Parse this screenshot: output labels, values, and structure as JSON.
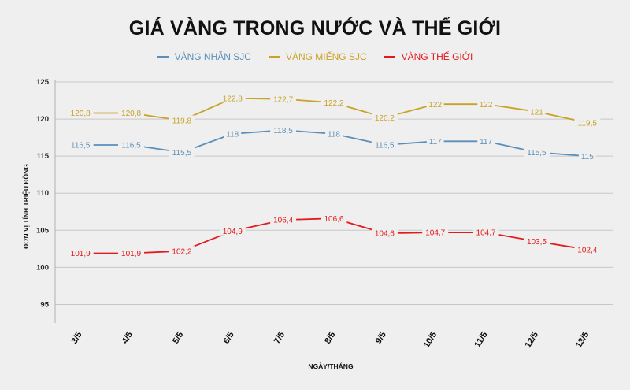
{
  "chart_data": {
    "type": "line",
    "title": "GIÁ VÀNG TRONG NƯỚC VÀ THẾ GIỚI",
    "xlabel": "NGÀY/THÁNG",
    "ylabel": "ĐƠN VỊ TÍNH TRIỆU ĐỒNG",
    "categories": [
      "3/5",
      "4/5",
      "5/5",
      "6/5",
      "7/5",
      "8/5",
      "9/5",
      "10/5",
      "11/5",
      "12/5",
      "13/5"
    ],
    "ylim": [
      92.5,
      125
    ],
    "yticks": [
      95,
      100,
      105,
      110,
      115,
      120,
      125
    ],
    "grid": true,
    "legend_position": "top-center",
    "series": [
      {
        "name": "VÀNG NHẪN SJC",
        "color": "#5b8fba",
        "values": [
          116.5,
          116.5,
          115.5,
          118,
          118.5,
          118,
          116.5,
          117,
          117,
          115.5,
          115
        ],
        "labels": [
          "116,5",
          "116,5",
          "115,5",
          "118",
          "118,5",
          "118",
          "116,5",
          "117",
          "117",
          "115,5",
          "115"
        ]
      },
      {
        "name": "VÀNG MIẾNG SJC",
        "color": "#c9a227",
        "values": [
          120.8,
          120.8,
          119.8,
          122.8,
          122.7,
          122.2,
          120.2,
          122,
          122,
          121,
          119.5
        ],
        "labels": [
          "120,8",
          "120,8",
          "119,8",
          "122,8",
          "122,7",
          "122,2",
          "120,2",
          "122",
          "122",
          "121",
          "119,5"
        ]
      },
      {
        "name": "VÀNG THẾ GIỚI",
        "color": "#e4191b",
        "values": [
          101.9,
          101.9,
          102.2,
          104.9,
          106.4,
          106.6,
          104.6,
          104.7,
          104.7,
          103.5,
          102.4
        ],
        "labels": [
          "101,9",
          "101,9",
          "102,2",
          "104,9",
          "106,4",
          "106,6",
          "104,6",
          "104,7",
          "104,7",
          "103,5",
          "102,4"
        ]
      }
    ]
  }
}
